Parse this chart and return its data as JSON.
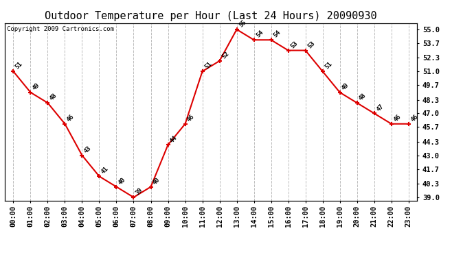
{
  "hours": [
    "00:00",
    "01:00",
    "02:00",
    "03:00",
    "04:00",
    "05:00",
    "06:00",
    "07:00",
    "08:00",
    "09:00",
    "10:00",
    "11:00",
    "12:00",
    "13:00",
    "14:00",
    "15:00",
    "16:00",
    "17:00",
    "18:00",
    "19:00",
    "20:00",
    "21:00",
    "22:00",
    "23:00"
  ],
  "temps": [
    51,
    49,
    48,
    46,
    43,
    41,
    40,
    39,
    40,
    44,
    46,
    51,
    52,
    55,
    54,
    54,
    53,
    53,
    51,
    49,
    48,
    47,
    46,
    46
  ],
  "title": "Outdoor Temperature per Hour (Last 24 Hours) 20090930",
  "copyright_text": "Copyright 2009 Cartronics.com",
  "line_color": "#dd0000",
  "marker_color": "#dd0000",
  "bg_color": "#ffffff",
  "plot_bg_color": "#ffffff",
  "grid_color": "#bbbbbb",
  "grid_style": "--",
  "yticks": [
    39.0,
    40.3,
    41.7,
    43.0,
    44.3,
    45.7,
    47.0,
    48.3,
    49.7,
    51.0,
    52.3,
    53.7,
    55.0
  ],
  "ylim": [
    38.7,
    55.6
  ],
  "title_fontsize": 11,
  "label_fontsize": 6.5,
  "tick_fontsize": 7.5,
  "copyright_fontsize": 6.5
}
